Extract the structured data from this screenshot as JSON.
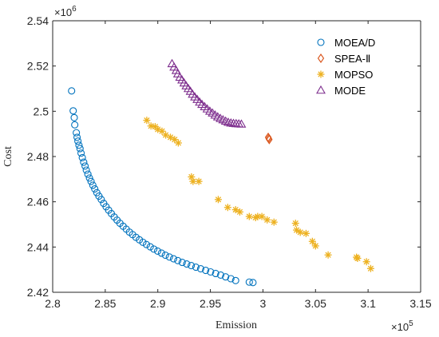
{
  "chart_data": {
    "type": "scatter",
    "xlabel": "Emission",
    "ylabel": "Cost",
    "x_multiplier": "×10",
    "x_exponent": "5",
    "y_multiplier": "×10",
    "y_exponent": "6",
    "xlim": [
      2.8,
      3.15
    ],
    "ylim": [
      2.42,
      2.54
    ],
    "x_ticks": [
      "2.8",
      "2.85",
      "2.9",
      "2.95",
      "3",
      "3.05",
      "3.1",
      "3.15"
    ],
    "y_ticks": [
      "2.42",
      "2.44",
      "2.46",
      "2.48",
      "2.5",
      "2.52",
      "2.54"
    ],
    "grid": false,
    "legend_position": "top-right",
    "series": [
      {
        "name": "MOEA/D",
        "marker": "circle",
        "color": "#0072BD",
        "points": [
          [
            2.818,
            2.509
          ],
          [
            2.8195,
            2.5002
          ],
          [
            2.8205,
            2.4972
          ],
          [
            2.821,
            2.494
          ],
          [
            2.8225,
            2.4905
          ],
          [
            2.8232,
            2.4885
          ],
          [
            2.824,
            2.4868
          ],
          [
            2.825,
            2.485
          ],
          [
            2.826,
            2.4835
          ],
          [
            2.827,
            2.4815
          ],
          [
            2.8282,
            2.4795
          ],
          [
            2.8295,
            2.4775
          ],
          [
            2.8308,
            2.4758
          ],
          [
            2.832,
            2.474
          ],
          [
            2.8335,
            2.4722
          ],
          [
            2.835,
            2.4705
          ],
          [
            2.8365,
            2.469
          ],
          [
            2.8382,
            2.4673
          ],
          [
            2.84,
            2.4657
          ],
          [
            2.842,
            2.464
          ],
          [
            2.844,
            2.4625
          ],
          [
            2.8462,
            2.461
          ],
          [
            2.8485,
            2.4593
          ],
          [
            2.8508,
            2.4578
          ],
          [
            2.8532,
            2.4563
          ],
          [
            2.8558,
            2.4548
          ],
          [
            2.8585,
            2.4533
          ],
          [
            2.8612,
            2.4519
          ],
          [
            2.864,
            2.4505
          ],
          [
            2.867,
            2.4492
          ],
          [
            2.87,
            2.4479
          ],
          [
            2.873,
            2.4466
          ],
          [
            2.876,
            2.4455
          ],
          [
            2.8792,
            2.4443
          ],
          [
            2.8825,
            2.4432
          ],
          [
            2.8858,
            2.4421
          ],
          [
            2.8892,
            2.4411
          ],
          [
            2.8928,
            2.4401
          ],
          [
            2.8962,
            2.4391
          ],
          [
            2.8998,
            2.4382
          ],
          [
            2.9035,
            2.4373
          ],
          [
            2.9072,
            2.4364
          ],
          [
            2.911,
            2.4356
          ],
          [
            2.915,
            2.4348
          ],
          [
            2.919,
            2.434
          ],
          [
            2.9232,
            2.4332
          ],
          [
            2.9275,
            2.4325
          ],
          [
            2.9318,
            2.4318
          ],
          [
            2.9362,
            2.4311
          ],
          [
            2.9408,
            2.4304
          ],
          [
            2.9455,
            2.4297
          ],
          [
            2.9502,
            2.429
          ],
          [
            2.955,
            2.4283
          ],
          [
            2.9598,
            2.4276
          ],
          [
            2.9645,
            2.4268
          ],
          [
            2.9695,
            2.426
          ],
          [
            2.974,
            2.4252
          ],
          [
            2.987,
            2.4245
          ],
          [
            2.9905,
            2.4243
          ]
        ]
      },
      {
        "name": "SPEA-Ⅱ",
        "marker": "diamond",
        "color": "#D95319",
        "points": [
          [
            3.0055,
            2.488
          ],
          [
            3.006,
            2.4875
          ],
          [
            3.005,
            2.4885
          ]
        ]
      },
      {
        "name": "MOPSO",
        "marker": "asterisk",
        "color": "#EDB120",
        "points": [
          [
            2.8895,
            2.496
          ],
          [
            2.8935,
            2.4935
          ],
          [
            2.8975,
            2.4932
          ],
          [
            2.9,
            2.492
          ],
          [
            2.904,
            2.4912
          ],
          [
            2.9075,
            2.4895
          ],
          [
            2.912,
            2.4885
          ],
          [
            2.916,
            2.4875
          ],
          [
            2.9195,
            2.486
          ],
          [
            2.932,
            2.471
          ],
          [
            2.9335,
            2.469
          ],
          [
            2.939,
            2.469
          ],
          [
            2.9575,
            2.461
          ],
          [
            2.9665,
            2.4575
          ],
          [
            2.974,
            2.4565
          ],
          [
            2.978,
            2.4555
          ],
          [
            2.987,
            2.4535
          ],
          [
            2.993,
            2.453
          ],
          [
            2.995,
            2.4535
          ],
          [
            2.999,
            2.4535
          ],
          [
            3.004,
            2.452
          ],
          [
            3.0105,
            2.451
          ],
          [
            3.031,
            2.4505
          ],
          [
            3.032,
            2.4475
          ],
          [
            3.0355,
            2.4465
          ],
          [
            3.041,
            2.446
          ],
          [
            3.047,
            2.4425
          ],
          [
            3.05,
            2.4405
          ],
          [
            3.062,
            2.4365
          ],
          [
            3.089,
            2.4355
          ],
          [
            3.09,
            2.435
          ],
          [
            3.0985,
            2.4335
          ],
          [
            3.1025,
            2.4305
          ]
        ]
      },
      {
        "name": "MODE",
        "marker": "triangle",
        "color": "#7E2F8E",
        "points": [
          [
            2.9135,
            2.521
          ],
          [
            2.9155,
            2.5195
          ],
          [
            2.9175,
            2.518
          ],
          [
            2.919,
            2.5165
          ],
          [
            2.921,
            2.515
          ],
          [
            2.923,
            2.5138
          ],
          [
            2.925,
            2.5125
          ],
          [
            2.927,
            2.5112
          ],
          [
            2.929,
            2.51
          ],
          [
            2.931,
            2.5088
          ],
          [
            2.933,
            2.5075
          ],
          [
            2.9352,
            2.5063
          ],
          [
            2.9375,
            2.5052
          ],
          [
            2.9398,
            2.504
          ],
          [
            2.942,
            2.503
          ],
          [
            2.9445,
            2.502
          ],
          [
            2.947,
            2.501
          ],
          [
            2.9495,
            2.5
          ],
          [
            2.952,
            2.4992
          ],
          [
            2.9545,
            2.4983
          ],
          [
            2.957,
            2.4975
          ],
          [
            2.9595,
            2.4968
          ],
          [
            2.962,
            2.4962
          ],
          [
            2.9645,
            2.4956
          ],
          [
            2.967,
            2.4951
          ],
          [
            2.9695,
            2.4948
          ],
          [
            2.972,
            2.4946
          ],
          [
            2.9745,
            2.4945
          ],
          [
            2.977,
            2.4944
          ],
          [
            2.9795,
            2.4943
          ]
        ]
      }
    ]
  }
}
